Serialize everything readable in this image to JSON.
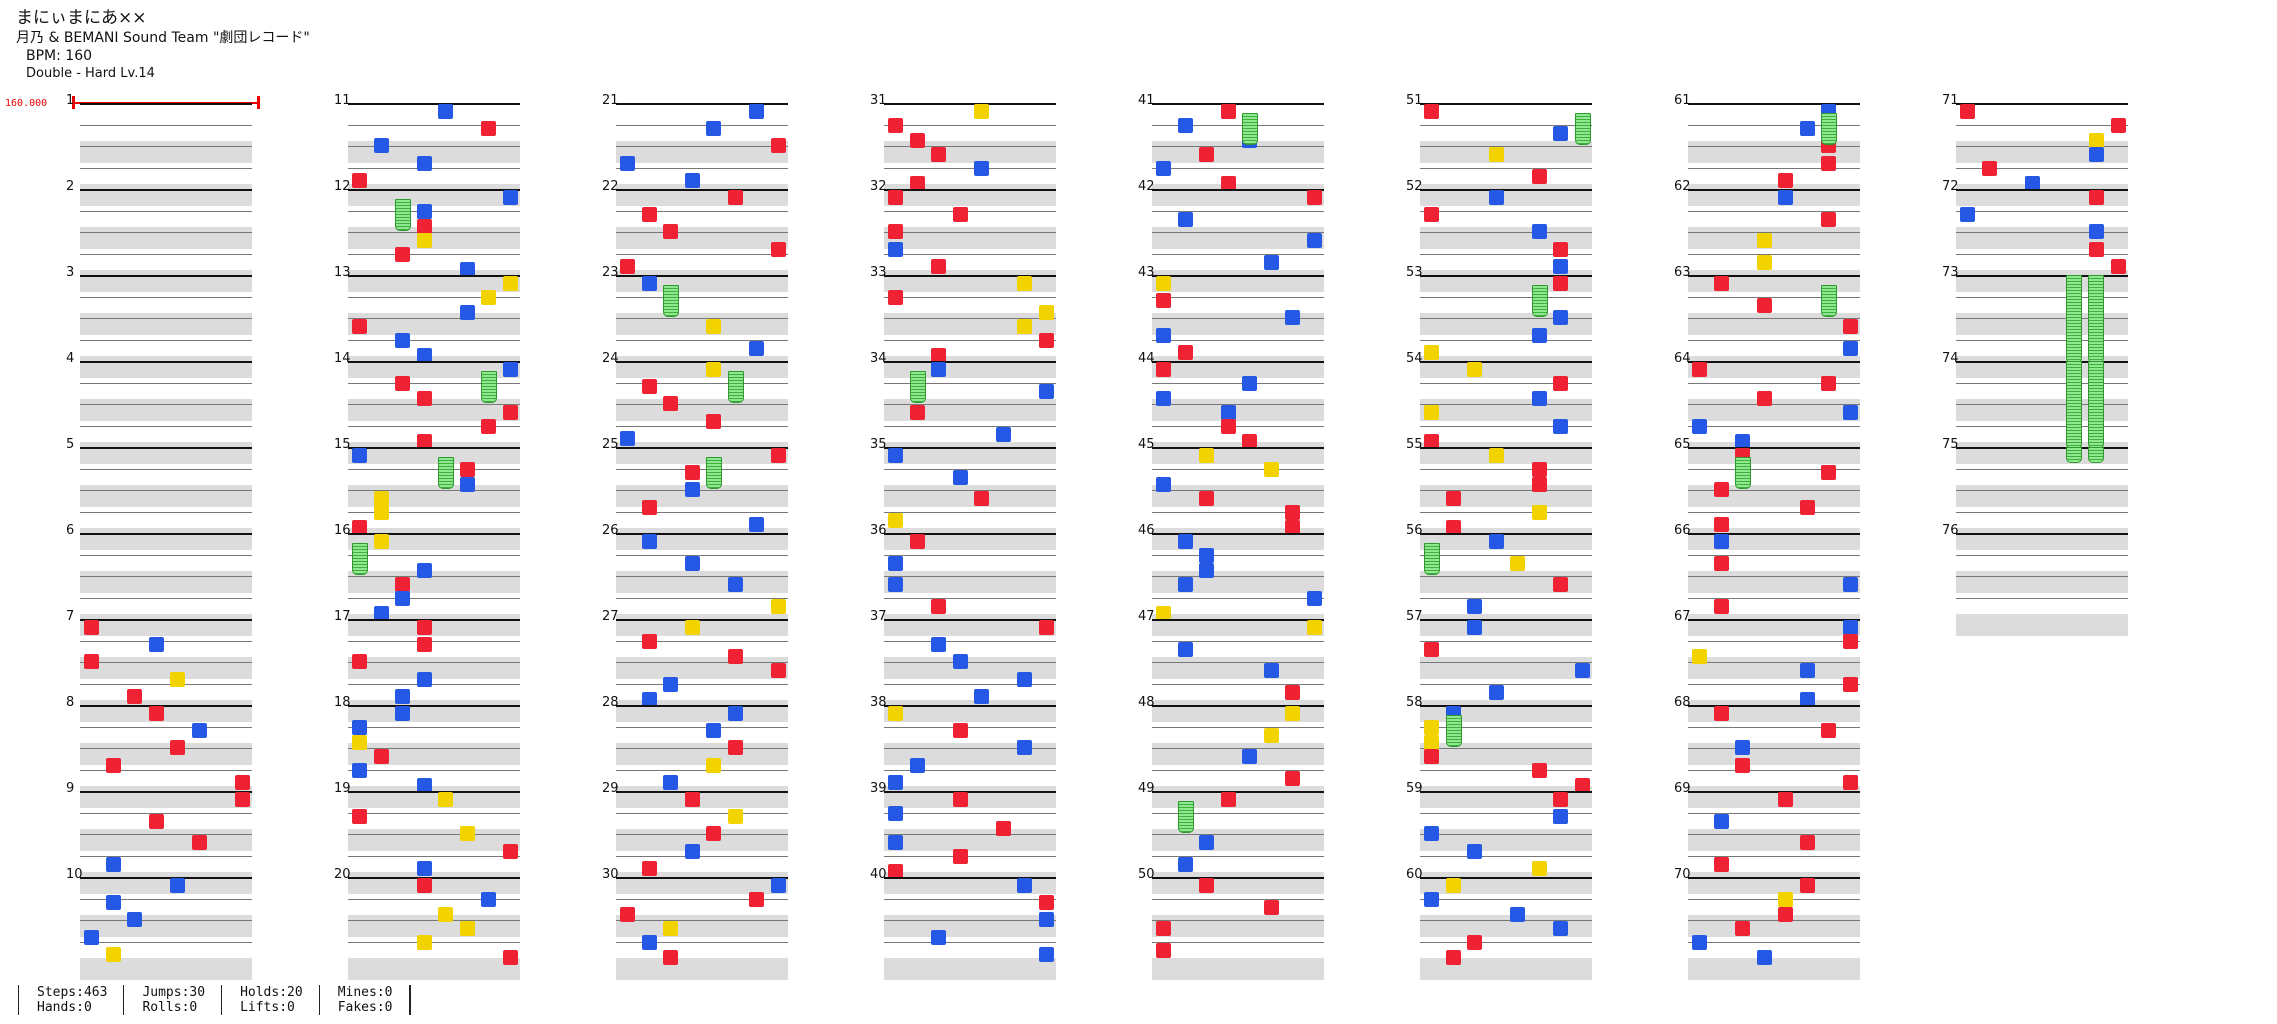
{
  "header": {
    "title": "まにぃまにあ××",
    "artist": "月乃 & BEMANI Sound Team \"劇団レコード\"",
    "bpm": "BPM: 160",
    "difficulty": "Double - Hard  Lv.14"
  },
  "bpm_marker": {
    "label": "160.000"
  },
  "measures": [
    "1",
    "2",
    "3",
    "4",
    "5",
    "6",
    "7",
    "8",
    "9",
    "10",
    "11",
    "12",
    "13",
    "14",
    "15",
    "16",
    "17",
    "18",
    "19",
    "20",
    "21",
    "22",
    "23",
    "24",
    "25",
    "26",
    "27",
    "28",
    "29",
    "30",
    "31",
    "32",
    "33",
    "34",
    "35",
    "36",
    "37",
    "38",
    "39",
    "40",
    "41",
    "42",
    "43",
    "44",
    "45",
    "46",
    "47",
    "48",
    "49",
    "50",
    "51",
    "52",
    "53",
    "54",
    "55",
    "56",
    "57",
    "58",
    "59",
    "60",
    "61",
    "62",
    "63",
    "64",
    "65",
    "66",
    "67",
    "68",
    "69",
    "70",
    "71",
    "72",
    "73",
    "74",
    "75",
    "76"
  ],
  "colors": {
    "red": "#ee2233",
    "blue": "#2458e5",
    "yellow": "#f2d300",
    "hold": "#6fdc6f"
  },
  "stats": [
    {
      "top": "Steps:463",
      "bottom": "Hands:0"
    },
    {
      "top": "Jumps:30",
      "bottom": "Rolls:0"
    },
    {
      "top": "Holds:20",
      "bottom": "Lifts:0"
    },
    {
      "top": "Mines:0",
      "bottom": "Fakes:0"
    }
  ]
}
